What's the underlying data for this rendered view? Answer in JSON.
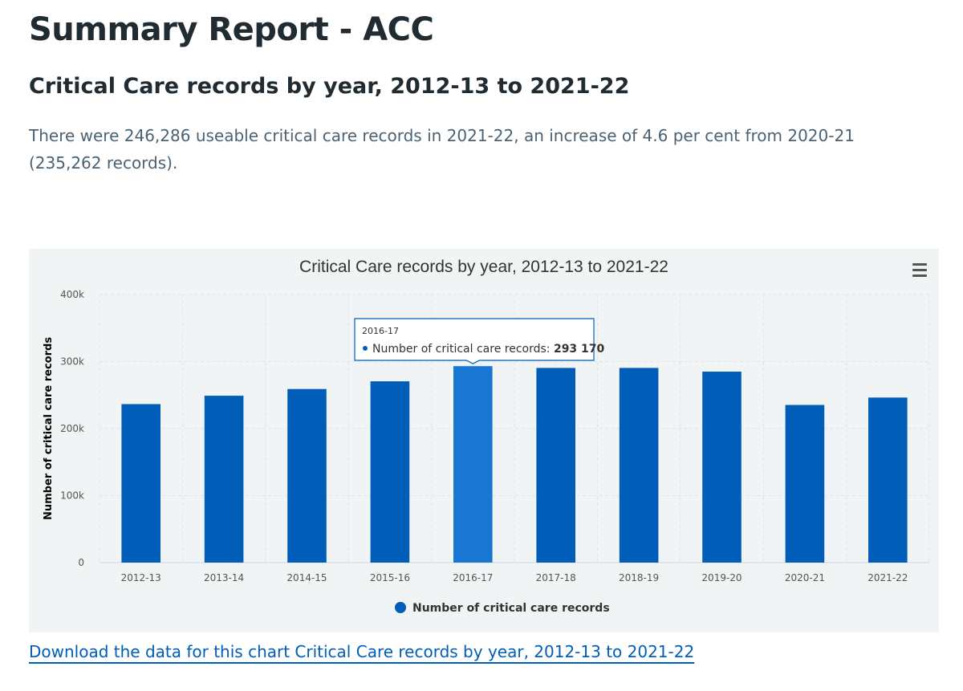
{
  "page": {
    "title": "Summary Report - ACC",
    "section_title": "Critical Care records by year, 2012-13 to 2021-22",
    "summary": "There were 246,286 useable critical care records in 2021-22, an increase of 4.6 per cent from 2020-21 (235,262 records).",
    "download_link": "Download the data for this chart Critical Care records by year, 2012-13 to 2021-22"
  },
  "chart_data": {
    "type": "bar",
    "title": "Critical Care records by year, 2012-13 to 2021-22",
    "xlabel": "",
    "ylabel": "Number of critical care records",
    "categories": [
      "2012-13",
      "2013-14",
      "2014-15",
      "2015-16",
      "2016-17",
      "2017-18",
      "2018-19",
      "2019-20",
      "2020-21",
      "2021-22"
    ],
    "series": [
      {
        "name": "Number of critical care records",
        "values": [
          236500,
          249000,
          259000,
          270500,
          293170,
          290500,
          290500,
          285000,
          235262,
          246286
        ]
      }
    ],
    "ylim": [
      0,
      400000
    ],
    "yticks": [
      {
        "value": 0,
        "label": "0"
      },
      {
        "value": 100000,
        "label": "100k"
      },
      {
        "value": 200000,
        "label": "200k"
      },
      {
        "value": 300000,
        "label": "300k"
      },
      {
        "value": 400000,
        "label": "400k"
      }
    ],
    "grid": true,
    "legend_position": "bottom-center",
    "colors": {
      "bar": "#005eb8",
      "bar_hover": "#1976d2",
      "tooltip_border": "#005eb8"
    },
    "tooltip": {
      "category": "2016-17",
      "series": "Number of critical care records: ",
      "value": "293 170"
    }
  }
}
